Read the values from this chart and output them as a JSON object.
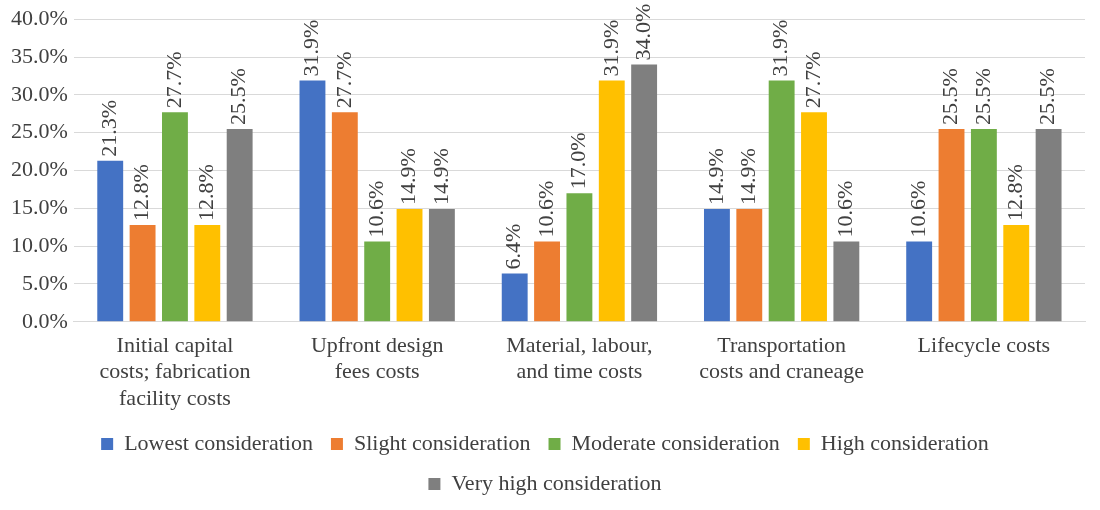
{
  "chart_data": {
    "type": "bar",
    "categories": [
      "Initial capital costs; fabrication facility costs",
      "Upfront design fees costs",
      "Material, labour, and time costs",
      "Transportation costs and craneage",
      "Lifecycle costs"
    ],
    "series": [
      {
        "name": "Lowest consideration",
        "color": "#4472c4",
        "values": [
          21.3,
          31.9,
          6.4,
          14.9,
          10.6
        ],
        "value_labels": [
          "21.3%",
          "31.9%",
          "6.4%",
          "14.9%",
          "10.6%"
        ]
      },
      {
        "name": "Slight consideration",
        "color": "#ed7d31",
        "values": [
          12.8,
          27.7,
          10.6,
          14.9,
          25.5
        ],
        "value_labels": [
          "12.8%",
          "27.7%",
          "10.6%",
          "14.9%",
          "25.5%"
        ]
      },
      {
        "name": "Moderate consideration",
        "color": "#70ad47",
        "values": [
          27.7,
          10.6,
          17.0,
          31.9,
          25.5
        ],
        "value_labels": [
          "27.7%",
          "10.6%",
          "17.0%",
          "31.9%",
          "25.5%"
        ]
      },
      {
        "name": "High consideration",
        "color": "#ffc000",
        "values": [
          12.8,
          14.9,
          31.9,
          27.7,
          12.8
        ],
        "value_labels": [
          "12.8%",
          "14.9%",
          "31.9%",
          "27.7%",
          "12.8%"
        ]
      },
      {
        "name": "Very high consideration",
        "color": "#7f7f7f",
        "values": [
          25.5,
          14.9,
          34.0,
          10.6,
          25.5
        ],
        "value_labels": [
          "25.5%",
          "14.9%",
          "34.0%",
          "10.6%",
          "25.5%"
        ]
      }
    ],
    "ylim": [
      0,
      40
    ],
    "yticks": [
      {
        "value": 0,
        "label": "0.0%"
      },
      {
        "value": 5,
        "label": "5.0%"
      },
      {
        "value": 10,
        "label": "10.0%"
      },
      {
        "value": 15,
        "label": "15.0%"
      },
      {
        "value": 20,
        "label": "20.0%"
      },
      {
        "value": 25,
        "label": "25.0%"
      },
      {
        "value": 30,
        "label": "30.0%"
      },
      {
        "value": 35,
        "label": "35.0%"
      },
      {
        "value": 40,
        "label": "40.0%"
      }
    ],
    "grid": "y",
    "legend": "bottom"
  }
}
